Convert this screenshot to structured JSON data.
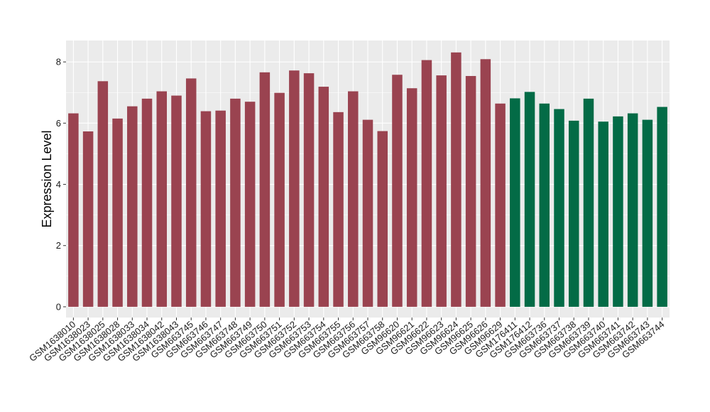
{
  "chart_data": {
    "type": "bar",
    "title": "",
    "xlabel": "",
    "ylabel": "Expression Level",
    "ylim": [
      -0.35,
      8.7
    ],
    "yticks": [
      0,
      2,
      4,
      6,
      8
    ],
    "grid": true,
    "legend": "none",
    "colors": {
      "panel": "#ebebeb",
      "grid": "#ffffff",
      "group_a": "#9a4350",
      "group_b": "#036b46"
    },
    "categories": [
      "GSM1638010",
      "GSM1638023",
      "GSM1638025",
      "GSM1638028",
      "GSM1638033",
      "GSM1638034",
      "GSM1638042",
      "GSM1638043",
      "GSM663745",
      "GSM663746",
      "GSM663747",
      "GSM663748",
      "GSM663749",
      "GSM663750",
      "GSM663751",
      "GSM663752",
      "GSM663753",
      "GSM663754",
      "GSM663755",
      "GSM663756",
      "GSM663757",
      "GSM663758",
      "GSM96620",
      "GSM96621",
      "GSM96622",
      "GSM96623",
      "GSM96624",
      "GSM96625",
      "GSM96626",
      "GSM96629",
      "GSM176411",
      "GSM176412",
      "GSM663736",
      "GSM663737",
      "GSM663738",
      "GSM663739",
      "GSM663740",
      "GSM663741",
      "GSM663742",
      "GSM663743",
      "GSM663744"
    ],
    "values": [
      6.32,
      5.73,
      7.37,
      6.15,
      6.55,
      6.8,
      7.04,
      6.9,
      7.46,
      6.39,
      6.41,
      6.8,
      6.7,
      7.66,
      6.99,
      7.72,
      7.63,
      7.19,
      6.36,
      7.04,
      6.11,
      5.74,
      7.58,
      7.14,
      8.06,
      7.56,
      8.31,
      7.54,
      8.09,
      6.64,
      6.81,
      7.02,
      6.64,
      6.46,
      6.08,
      6.8,
      6.05,
      6.22,
      6.32,
      6.11,
      6.53
    ],
    "groups": [
      "a",
      "a",
      "a",
      "a",
      "a",
      "a",
      "a",
      "a",
      "a",
      "a",
      "a",
      "a",
      "a",
      "a",
      "a",
      "a",
      "a",
      "a",
      "a",
      "a",
      "a",
      "a",
      "a",
      "a",
      "a",
      "a",
      "a",
      "a",
      "a",
      "a",
      "b",
      "b",
      "b",
      "b",
      "b",
      "b",
      "b",
      "b",
      "b",
      "b",
      "b"
    ]
  }
}
